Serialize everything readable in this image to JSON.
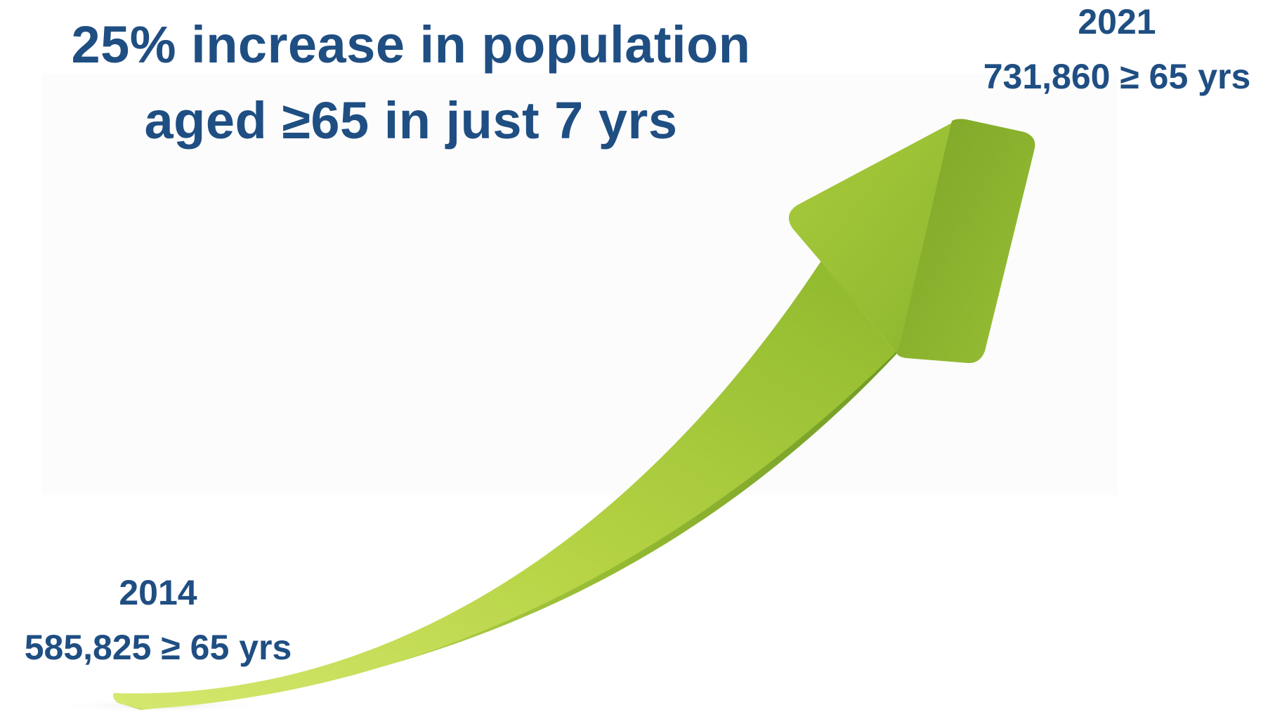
{
  "headline": {
    "line1": "25% increase in population",
    "line2": "aged ≥65 in just 7 yrs"
  },
  "endpoints": {
    "start": {
      "year": "2014",
      "value": "585,825 ≥ 65 yrs"
    },
    "end": {
      "year": "2021",
      "value": "731,860 ≥ 65 yrs"
    }
  },
  "graphic": {
    "icon": "rising-arrow-icon",
    "colors": {
      "arrow_light": "#cfe36a",
      "arrow_mid": "#9cc033",
      "arrow_dark": "#7fa428",
      "text": "#1f4e82"
    }
  }
}
